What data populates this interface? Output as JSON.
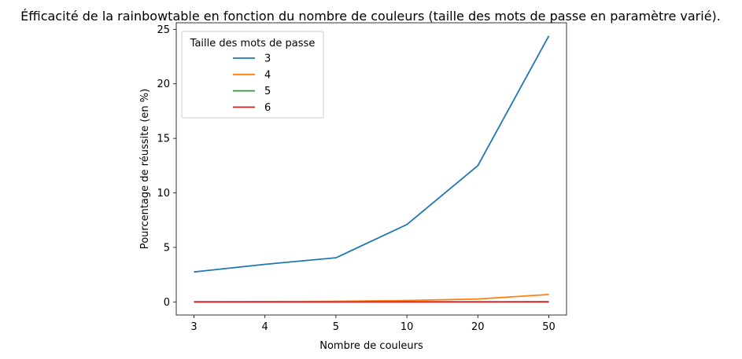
{
  "chart_data": {
    "type": "line",
    "title": "Éfficacité de la rainbowtable en fonction du nombre de couleurs (taille des mots de passe en paramètre varié).",
    "xlabel": "Nombre de couleurs",
    "ylabel": "Pourcentage de réussite (en %)",
    "categories": [
      "3",
      "4",
      "5",
      "10",
      "20",
      "50"
    ],
    "y_ticks": [
      "0",
      "5",
      "10",
      "15",
      "20",
      "25"
    ],
    "ylim": [
      -1.2,
      25.6
    ],
    "grid": false,
    "legend": {
      "title": "Taille des mots de passe",
      "position": "top-left"
    },
    "series": [
      {
        "name": "3",
        "color": "#1f77b4",
        "values": [
          2.75,
          3.45,
          4.05,
          7.1,
          12.5,
          24.4
        ]
      },
      {
        "name": "4",
        "color": "#ff7f0e",
        "values": [
          0.02,
          0.03,
          0.06,
          0.13,
          0.27,
          0.68
        ]
      },
      {
        "name": "5",
        "color": "#2ca02c",
        "values": [
          0.0,
          0.0,
          0.0,
          0.01,
          0.01,
          0.02
        ]
      },
      {
        "name": "6",
        "color": "#d62728",
        "values": [
          0.0,
          0.0,
          0.0,
          0.0,
          0.0,
          0.0
        ]
      }
    ]
  }
}
